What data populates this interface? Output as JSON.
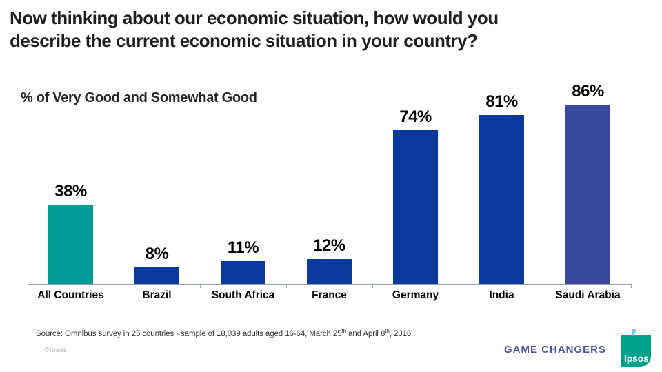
{
  "title": "Now thinking about our economic situation, how would you describe the current economic situation in your country?",
  "subtitle": "% of Very Good and Somewhat Good",
  "chart_data": {
    "type": "bar",
    "title": "% of Very Good and Somewhat Good",
    "categories": [
      "All Countries",
      "Brazil",
      "South Africa",
      "France",
      "Germany",
      "India",
      "Saudi Arabia"
    ],
    "values": [
      38,
      8,
      11,
      12,
      74,
      81,
      86
    ],
    "value_labels": [
      "38%",
      "8%",
      "11%",
      "12%",
      "74%",
      "81%",
      "86%"
    ],
    "bar_colors": [
      "#009a94",
      "#0b3a9f",
      "#0b3a9f",
      "#0b3a9f",
      "#0b3a9f",
      "#0b3a9f",
      "#36499b"
    ],
    "xlabel": "",
    "ylabel": "",
    "ylim": [
      0,
      100
    ],
    "grid": false,
    "legend": "none",
    "axis_color": "#95a3ad"
  },
  "footer": {
    "source_parts": [
      "Source: Omnibus survey in 25 countries - sample of 18,039 adults aged 16-64,  March 25",
      "th",
      " and April 8",
      "th",
      ", 2016."
    ],
    "copyright": "©Ipsos.",
    "game_changers": "GAME CHANGERS"
  },
  "logo": {
    "word": "Ipsos",
    "background_color": "#00a18c",
    "apostrophe_color": "#7cc5e8",
    "apostrophe_glyph": "’"
  }
}
